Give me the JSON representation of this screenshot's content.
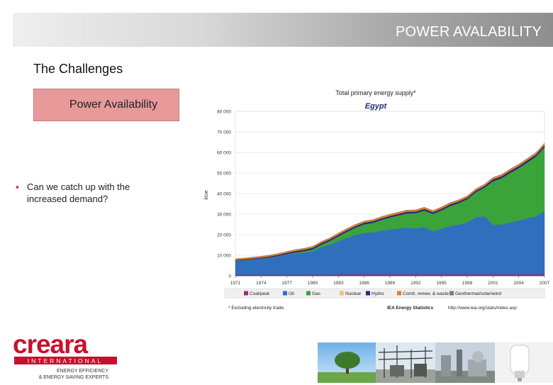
{
  "header": {
    "title": "POWER AVALABILITY"
  },
  "section_title": "The Challenges",
  "highlight_box": {
    "label": "Power Availability"
  },
  "bullets": [
    {
      "text": "Can we catch up with the increased demand?"
    }
  ],
  "chart_data": {
    "type": "area",
    "title": "Total primary energy supply*",
    "subtitle": "Egypt",
    "ylabel": "ktoe",
    "ylim": [
      0,
      80000
    ],
    "y_ticks": [
      "0",
      "10 000",
      "20 000",
      "30 000",
      "40 000",
      "50 000",
      "60 000",
      "70 000",
      "80 000"
    ],
    "x_tick_labels": [
      "1971",
      "1974",
      "1977",
      "1980",
      "1983",
      "1986",
      "1989",
      "1992",
      "1995",
      "1998",
      "2001",
      "2004",
      "2007"
    ],
    "x": [
      1971,
      1972,
      1973,
      1974,
      1975,
      1976,
      1977,
      1978,
      1979,
      1980,
      1981,
      1982,
      1983,
      1984,
      1985,
      1986,
      1987,
      1988,
      1989,
      1990,
      1991,
      1992,
      1993,
      1994,
      1995,
      1996,
      1997,
      1998,
      1999,
      2000,
      2001,
      2002,
      2003,
      2004,
      2005,
      2006,
      2007
    ],
    "series": [
      {
        "name": "Coal/peat",
        "color": "#9c2a7a",
        "values": [
          500,
          500,
          500,
          500,
          500,
          500,
          500,
          500,
          500,
          600,
          600,
          600,
          700,
          700,
          700,
          700,
          700,
          700,
          700,
          700,
          700,
          700,
          700,
          700,
          700,
          700,
          700,
          700,
          700,
          700,
          700,
          700,
          700,
          700,
          700,
          700,
          700
        ]
      },
      {
        "name": "Oil",
        "color": "#2f6fbe",
        "values": [
          6800,
          7000,
          7400,
          7800,
          8300,
          9000,
          9800,
          10400,
          10800,
          11300,
          13200,
          14500,
          16200,
          17800,
          19200,
          20200,
          20400,
          21200,
          21800,
          22300,
          22700,
          22300,
          23100,
          21000,
          22200,
          23500,
          24200,
          25300,
          27800,
          28300,
          24200,
          24200,
          25300,
          26100,
          27400,
          28200,
          30800
        ]
      },
      {
        "name": "Gas",
        "color": "#3aa33a",
        "values": [
          100,
          100,
          100,
          100,
          100,
          100,
          200,
          400,
          600,
          900,
          1300,
          1800,
          2300,
          2900,
          3500,
          4100,
          4600,
          5200,
          5800,
          6300,
          6900,
          7400,
          7900,
          8400,
          8900,
          9700,
          10400,
          11200,
          12100,
          13800,
          21000,
          22500,
          24000,
          25500,
          27000,
          29000,
          31000
        ]
      },
      {
        "name": "Nuclear",
        "color": "#f2c27b",
        "values": [
          0,
          0,
          0,
          0,
          0,
          0,
          0,
          0,
          0,
          0,
          0,
          0,
          0,
          0,
          0,
          0,
          0,
          0,
          0,
          0,
          0,
          0,
          0,
          0,
          0,
          0,
          0,
          0,
          0,
          0,
          0,
          0,
          0,
          0,
          0,
          0,
          0
        ]
      },
      {
        "name": "Hydro",
        "color": "#1f2e7a",
        "values": [
          300,
          400,
          450,
          500,
          550,
          600,
          700,
          750,
          800,
          850,
          850,
          850,
          850,
          850,
          850,
          850,
          850,
          850,
          850,
          850,
          850,
          850,
          850,
          850,
          850,
          850,
          850,
          850,
          850,
          850,
          1050,
          1050,
          1050,
          1050,
          1050,
          1050,
          1050
        ]
      },
      {
        "name": "Comb. renew. & waste",
        "color": "#e87d23",
        "values": [
          600,
          600,
          600,
          600,
          600,
          650,
          650,
          650,
          650,
          700,
          700,
          700,
          750,
          750,
          750,
          750,
          750,
          800,
          800,
          800,
          800,
          800,
          800,
          800,
          800,
          800,
          800,
          800,
          850,
          850,
          850,
          850,
          850,
          850,
          850,
          850,
          850
        ]
      },
      {
        "name": "Geothermal/solar/wind",
        "color": "#7d7d7d",
        "values": [
          0,
          0,
          0,
          0,
          0,
          0,
          0,
          0,
          0,
          0,
          0,
          0,
          0,
          0,
          0,
          0,
          0,
          0,
          0,
          0,
          0,
          0,
          0,
          0,
          0,
          0,
          0,
          0,
          0,
          0,
          0,
          0,
          50,
          100,
          100,
          150,
          150
        ]
      }
    ],
    "footnote": "* Excluding electricity trade.",
    "source": "IEA Energy Statistics",
    "source_url": "http://www.iea.org/stats/index.asp"
  },
  "logo": {
    "brand": "creara",
    "international": "INTERNATIONAL",
    "tagline_1": "ENERGY EFFICIENCY",
    "tagline_2": "& ENERGY SAVING EXPERTS"
  },
  "colors": {
    "accent_red": "#c8102e",
    "highlight_pink": "#e8999a"
  }
}
